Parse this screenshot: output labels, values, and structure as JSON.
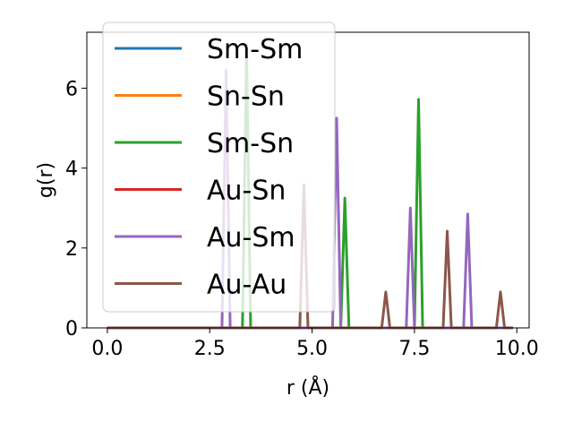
{
  "chart_data": {
    "type": "line",
    "xlabel": "r (Å)",
    "ylabel": "g(r)",
    "xlim": [
      -0.5,
      10.3
    ],
    "ylim": [
      0,
      7.4
    ],
    "xticks": [
      0.0,
      2.5,
      5.0,
      7.5,
      10.0
    ],
    "xtick_labels": [
      "0.0",
      "2.5",
      "5.0",
      "7.5",
      "10.0"
    ],
    "yticks": [
      0,
      2,
      4,
      6
    ],
    "ytick_labels": [
      "0",
      "2",
      "4",
      "6"
    ],
    "grid": false,
    "legend_position": "upper-left",
    "series": [
      {
        "name": "Sm-Sm",
        "color": "#1f77b4",
        "x": [
          0.0,
          9.9
        ],
        "y": [
          0.0,
          0.0
        ]
      },
      {
        "name": "Sn-Sn",
        "color": "#ff7f0e",
        "x": [
          0.0,
          9.9
        ],
        "y": [
          0.0,
          0.0
        ]
      },
      {
        "name": "Sm-Sn",
        "color": "#2ca02c",
        "x": [
          0.0,
          3.3,
          3.4,
          3.5,
          5.7,
          5.8,
          5.9,
          7.5,
          7.6,
          7.7,
          9.9
        ],
        "y": [
          0.0,
          0.0,
          7.0,
          0.0,
          0.0,
          3.25,
          0.0,
          0.0,
          5.72,
          0.0,
          0.0
        ]
      },
      {
        "name": "Au-Sn",
        "color": "#d62728",
        "x": [
          0.0,
          9.9
        ],
        "y": [
          0.0,
          0.0
        ]
      },
      {
        "name": "Au-Sm",
        "color": "#9467bd",
        "x": [
          0.0,
          2.8,
          2.9,
          3.0,
          5.5,
          5.6,
          5.7,
          7.3,
          7.4,
          7.5,
          8.7,
          8.8,
          8.9,
          9.9
        ],
        "y": [
          0.0,
          0.0,
          6.45,
          0.0,
          0.0,
          5.25,
          0.0,
          0.0,
          3.0,
          0.0,
          0.0,
          2.85,
          0.0,
          0.0
        ]
      },
      {
        "name": "Au-Au",
        "color": "#8c564b",
        "x": [
          0.0,
          4.7,
          4.8,
          4.9,
          6.7,
          6.8,
          6.9,
          8.2,
          8.3,
          8.4,
          9.5,
          9.6,
          9.7,
          9.9
        ],
        "y": [
          0.0,
          0.0,
          3.58,
          0.0,
          0.0,
          0.9,
          0.0,
          0.0,
          2.42,
          0.0,
          0.0,
          0.9,
          0.0,
          0.0
        ]
      }
    ]
  }
}
